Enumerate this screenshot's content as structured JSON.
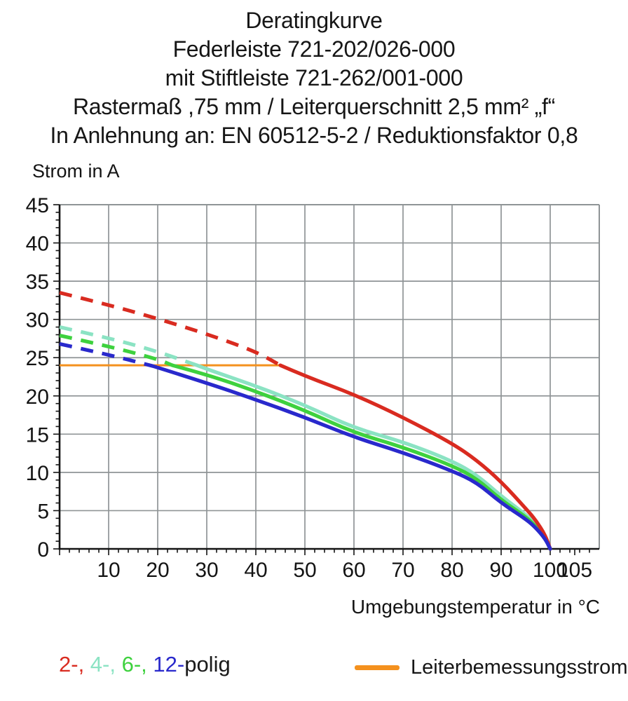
{
  "title": {
    "lines": [
      "Deratingkurve",
      "Federleiste 721-202/026-000",
      "mit Stiftleiste 721-262/001-000",
      "Rastermaß ,75 mm / Leiterquerschnitt 2,5 mm² „f“",
      "In Anlehnung an: EN 60512-5-2 / Reduktionsfaktor 0,8"
    ]
  },
  "axes": {
    "y_title": "Strom in A",
    "x_title": "Umgebungstemperatur in °C"
  },
  "legend": {
    "poles_parts": [
      {
        "text": "2-,",
        "color": "#d92b20"
      },
      {
        "text": " 4-,",
        "color": "#8be3c3"
      },
      {
        "text": " 6-,",
        "color": "#3ed13e"
      },
      {
        "text": " 12-",
        "color": "#2929cc"
      },
      {
        "text": "polig",
        "color": "#1a1a1a"
      }
    ],
    "rated": {
      "label": "Leiterbemessungsstrom",
      "color": "#f4911e"
    }
  },
  "chart_data": {
    "type": "line",
    "title": "Deratingkurve",
    "xlabel": "Umgebungstemperatur in °C",
    "ylabel": "Strom in A",
    "xlim": [
      0,
      110
    ],
    "ylim": [
      0,
      45
    ],
    "xtick_labels": [
      10,
      20,
      30,
      40,
      50,
      60,
      70,
      80,
      90,
      100,
      105
    ],
    "xgridlines": [
      10,
      20,
      30,
      40,
      50,
      60,
      70,
      80,
      90,
      100
    ],
    "ytick_labels": [
      0,
      5,
      10,
      15,
      20,
      25,
      30,
      35,
      40,
      45
    ],
    "ygridlines": [
      5,
      10,
      15,
      20,
      25,
      30,
      35,
      40
    ],
    "x_minor_step": 2,
    "y_minor_step": 1,
    "grid": true,
    "colors": {
      "grid": "#8f9496",
      "axis": "#141414"
    },
    "rated_current_line": {
      "label": "Leiterbemessungsstrom",
      "value": 24,
      "t_start": 0,
      "t_end": 45,
      "color": "#f4911e"
    },
    "note": "curves dashed above rated current (24 A), solid below; all reach 0 A at 100 °C",
    "series": [
      {
        "name": "4-polig",
        "color": "#8be3c3",
        "solid_from": 28,
        "points": [
          [
            0,
            29
          ],
          [
            10,
            27.6
          ],
          [
            20,
            25.8
          ],
          [
            28,
            24
          ],
          [
            30,
            23.5
          ],
          [
            40,
            21.3
          ],
          [
            50,
            18.8
          ],
          [
            60,
            15.8
          ],
          [
            70,
            14
          ],
          [
            80,
            11.5
          ],
          [
            85,
            9.7
          ],
          [
            90,
            6.9
          ],
          [
            95,
            4.5
          ],
          [
            97,
            3.3
          ],
          [
            99,
            1.6
          ],
          [
            100,
            0
          ]
        ]
      },
      {
        "name": "6-polig",
        "color": "#3ed13e",
        "solid_from": 23,
        "points": [
          [
            0,
            27.9
          ],
          [
            10,
            26.5
          ],
          [
            20,
            24.8
          ],
          [
            23,
            24
          ],
          [
            30,
            22.8
          ],
          [
            40,
            20.6
          ],
          [
            50,
            18.1
          ],
          [
            60,
            15.2
          ],
          [
            70,
            13.3
          ],
          [
            80,
            10.9
          ],
          [
            85,
            9.2
          ],
          [
            90,
            6.4
          ],
          [
            95,
            4.2
          ],
          [
            97,
            3
          ],
          [
            99,
            1.4
          ],
          [
            100,
            0
          ]
        ]
      },
      {
        "name": "2-polig",
        "color": "#d92b20",
        "solid_from": 45,
        "points": [
          [
            0,
            33.5
          ],
          [
            10,
            31.9
          ],
          [
            20,
            30.1
          ],
          [
            30,
            28.1
          ],
          [
            40,
            25.8
          ],
          [
            45,
            24
          ],
          [
            50,
            22.6
          ],
          [
            60,
            20.2
          ],
          [
            70,
            17.2
          ],
          [
            80,
            13.8
          ],
          [
            85,
            11.6
          ],
          [
            90,
            8.8
          ],
          [
            95,
            5.3
          ],
          [
            97,
            3.8
          ],
          [
            99,
            1.8
          ],
          [
            100,
            0
          ]
        ]
      },
      {
        "name": "12-polig",
        "color": "#2929cc",
        "solid_from": 19,
        "points": [
          [
            0,
            26.8
          ],
          [
            10,
            25.4
          ],
          [
            19,
            23.9
          ],
          [
            30,
            21.7
          ],
          [
            40,
            19.5
          ],
          [
            50,
            17.2
          ],
          [
            60,
            14.6
          ],
          [
            70,
            12.6
          ],
          [
            80,
            10.2
          ],
          [
            85,
            8.7
          ],
          [
            90,
            6
          ],
          [
            95,
            3.9
          ],
          [
            97,
            2.8
          ],
          [
            99,
            1.3
          ],
          [
            100,
            0
          ]
        ]
      }
    ]
  }
}
